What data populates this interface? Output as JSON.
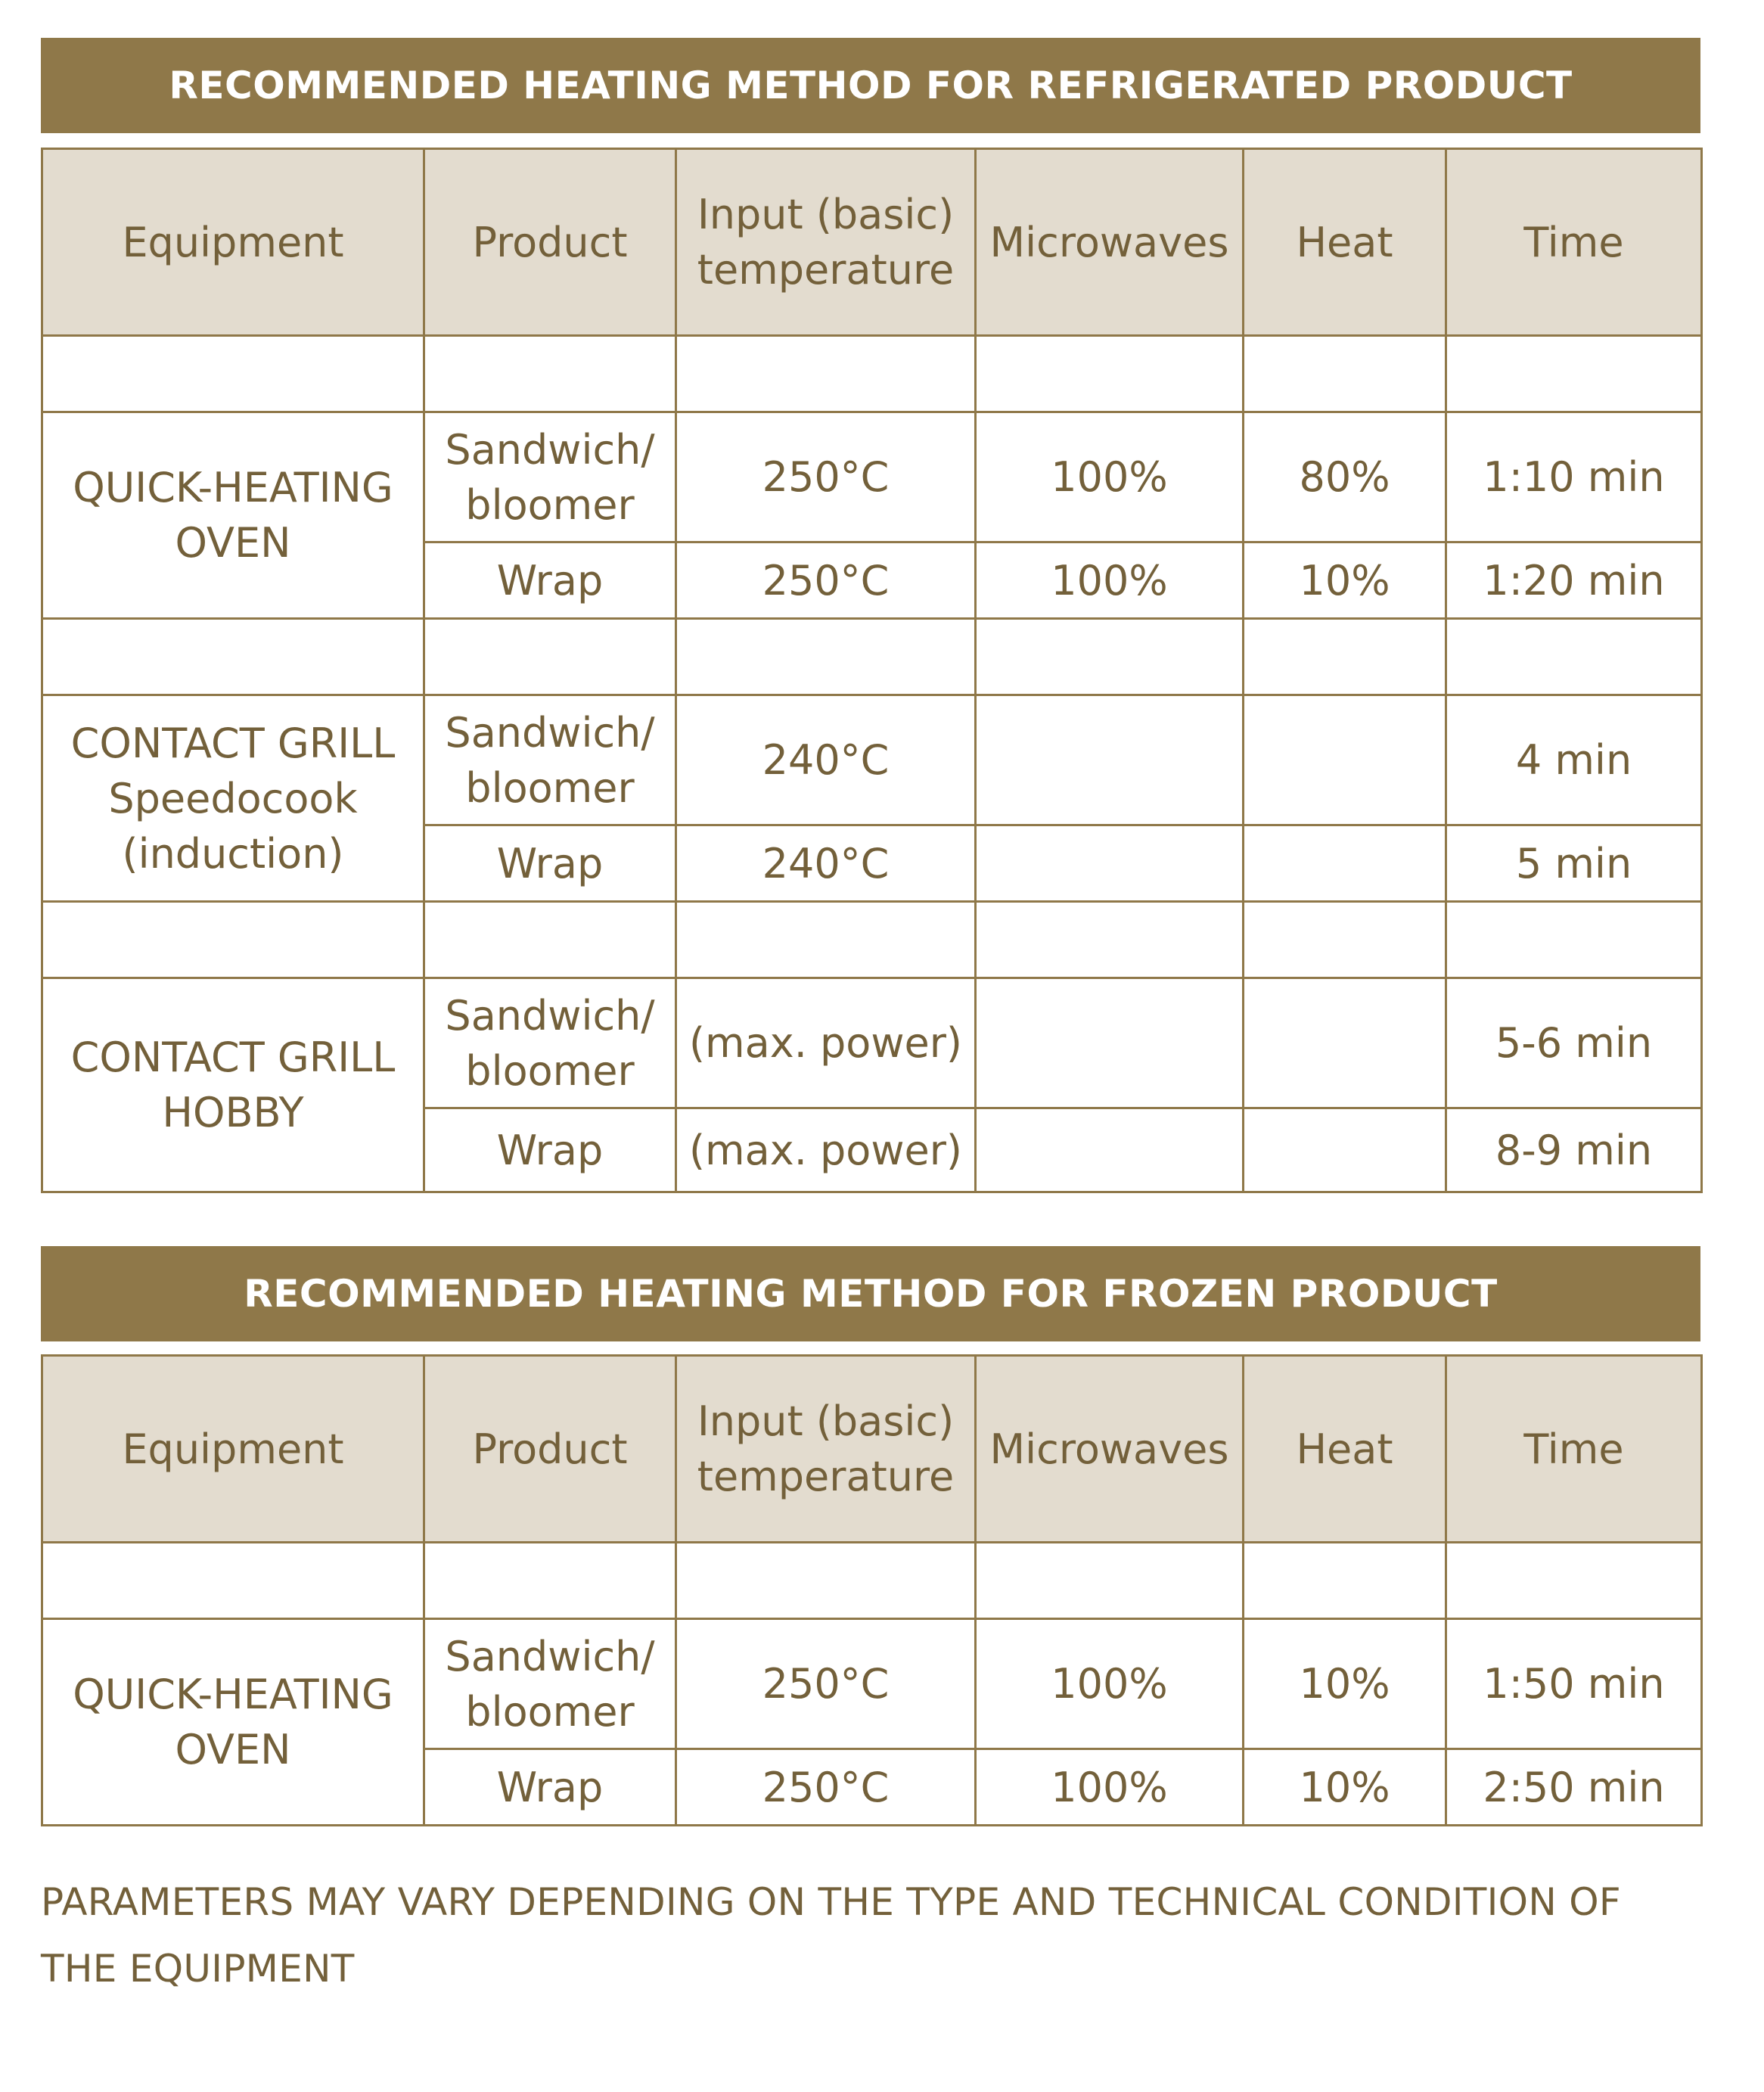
{
  "refrigerated": {
    "title": "RECOMMENDED HEATING METHOD FOR REFRIGERATED PRODUCT",
    "headers": [
      "Equipment",
      "Product",
      "Input (basic) temperature",
      "Microwaves",
      "Heat",
      "Time"
    ],
    "groups": [
      {
        "equipment": "QUICK-HEATING OVEN",
        "rows": [
          {
            "product": "Sandwich/ bloomer",
            "temperature": "250°C",
            "microwaves": "100%",
            "heat": "80%",
            "time": "1:10 min"
          },
          {
            "product": "Wrap",
            "temperature": "250°C",
            "microwaves": "100%",
            "heat": "10%",
            "time": "1:20 min"
          }
        ]
      },
      {
        "equipment": "CONTACT GRILL Speedocook (induction)",
        "rows": [
          {
            "product": "Sandwich/ bloomer",
            "temperature": "240°C",
            "microwaves": "",
            "heat": "",
            "time": "4 min"
          },
          {
            "product": "Wrap",
            "temperature": "240°C",
            "microwaves": "",
            "heat": "",
            "time": "5 min"
          }
        ]
      },
      {
        "equipment": "CONTACT GRILL HOBBY",
        "rows": [
          {
            "product": "Sandwich/ bloomer",
            "temperature": "(max. power)",
            "microwaves": "",
            "heat": "",
            "time": "5-6 min"
          },
          {
            "product": "Wrap",
            "temperature": "(max. power)",
            "microwaves": "",
            "heat": "",
            "time": "8-9 min"
          }
        ]
      }
    ]
  },
  "frozen": {
    "title": "RECOMMENDED HEATING METHOD FOR FROZEN PRODUCT",
    "headers": [
      "Equipment",
      "Product",
      "Input (basic) temperature",
      "Microwaves",
      "Heat",
      "Time"
    ],
    "groups": [
      {
        "equipment": "QUICK-HEATING OVEN",
        "rows": [
          {
            "product": "Sandwich/ bloomer",
            "temperature": "250°C",
            "microwaves": "100%",
            "heat": "10%",
            "time": "1:50 min"
          },
          {
            "product": "Wrap",
            "temperature": "250°C",
            "microwaves": "100%",
            "heat": "10%",
            "time": "2:50 min"
          }
        ]
      }
    ]
  },
  "footnote": "PARAMETERS MAY VARY DEPENDING ON THE TYPE AND TECHNICAL CONDITION OF THE EQUIPMENT"
}
